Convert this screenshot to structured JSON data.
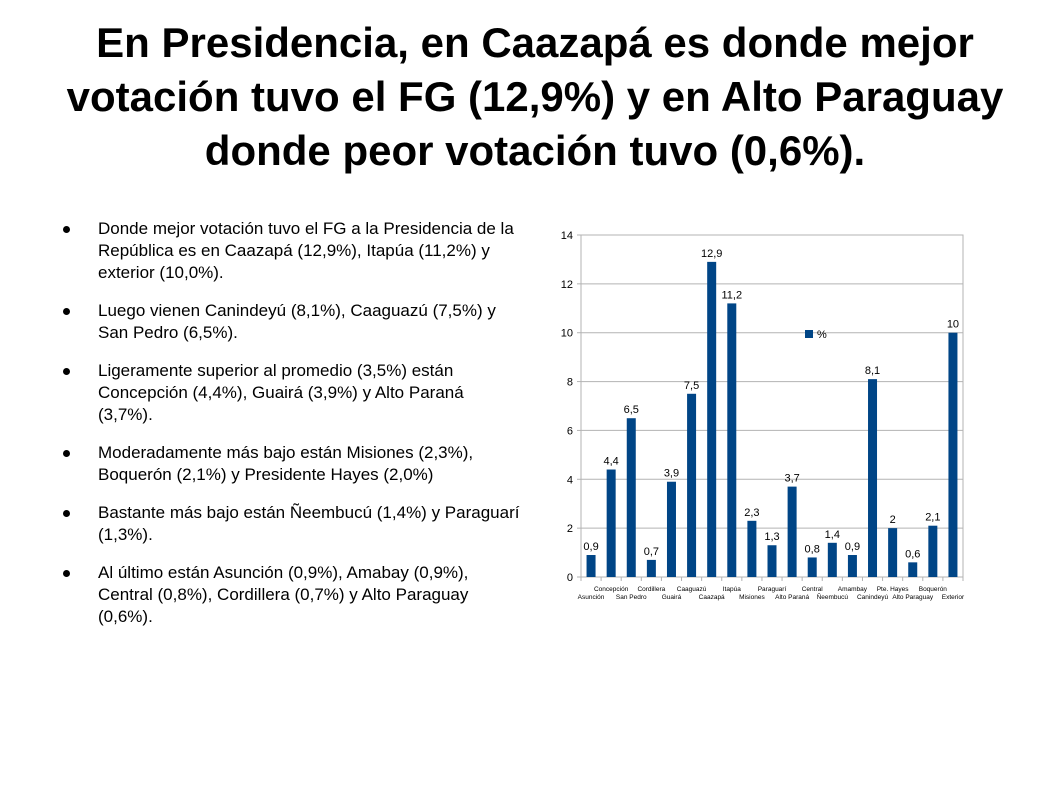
{
  "slide": {
    "title": "En Presidencia, en Caazapá es donde mejor votación tuvo el FG (12,9%) y en Alto Paraguay donde peor votación tuvo (0,6%).",
    "bullets": [
      "Donde mejor votación tuvo el FG a la Presidencia de la República es en Caazapá (12,9%), Itapúa (11,2%) y exterior (10,0%).",
      "Luego vienen Canindeyú (8,1%), Caaguazú (7,5%) y San Pedro (6,5%).",
      "Ligeramente superior al promedio (3,5%) están Concepción (4,4%), Guairá (3,9%) y Alto Paraná (3,7%).",
      "Moderadamente más bajo están Misiones (2,3%), Boquerón (2,1%) y Presidente Hayes (2,0%)",
      "Bastante más bajo están Ñeembucú (1,4%) y Paraguarí (1,3%).",
      "Al último están Asunción (0,9%), Amabay (0,9%), Central (0,8%), Cordillera (0,7%) y Alto Paraguay (0,6%)."
    ]
  },
  "chart_data": {
    "type": "bar",
    "categories": [
      "Asunción",
      "Concepción",
      "San Pedro",
      "Cordillera",
      "Guairá",
      "Caaguazú",
      "Caazapá",
      "Itapúa",
      "Misiones",
      "Paraguarí",
      "Alto Paraná",
      "Central",
      "Ñeembucú",
      "Amambay",
      "Canindeyú",
      "Pte. Hayes",
      "Alto Paraguay",
      "Boquerón",
      "Exterior"
    ],
    "values": [
      0.9,
      4.4,
      6.5,
      0.7,
      3.9,
      7.5,
      12.9,
      11.2,
      2.3,
      1.3,
      3.7,
      0.8,
      1.4,
      0.9,
      8.1,
      2,
      0.6,
      2.1,
      10
    ],
    "data_labels": [
      "0,9",
      "4,4",
      "6,5",
      "0,7",
      "3,9",
      "7,5",
      "12,9",
      "11,2",
      "2,3",
      "1,3",
      "3,7",
      "0,8",
      "1,4",
      "0,9",
      "8,1",
      "2",
      "0,6",
      "2,1",
      "10"
    ],
    "y_ticks": [
      "0",
      "2",
      "4",
      "6",
      "8",
      "10",
      "12",
      "14"
    ],
    "ylim": [
      0,
      14
    ],
    "grid": true,
    "legend": {
      "label": "%",
      "placement": "inside-center"
    },
    "color": "#004586",
    "series": [
      {
        "name": "%",
        "values": [
          0.9,
          4.4,
          6.5,
          0.7,
          3.9,
          7.5,
          12.9,
          11.2,
          2.3,
          1.3,
          3.7,
          0.8,
          1.4,
          0.9,
          8.1,
          2,
          0.6,
          2.1,
          10
        ]
      }
    ]
  }
}
